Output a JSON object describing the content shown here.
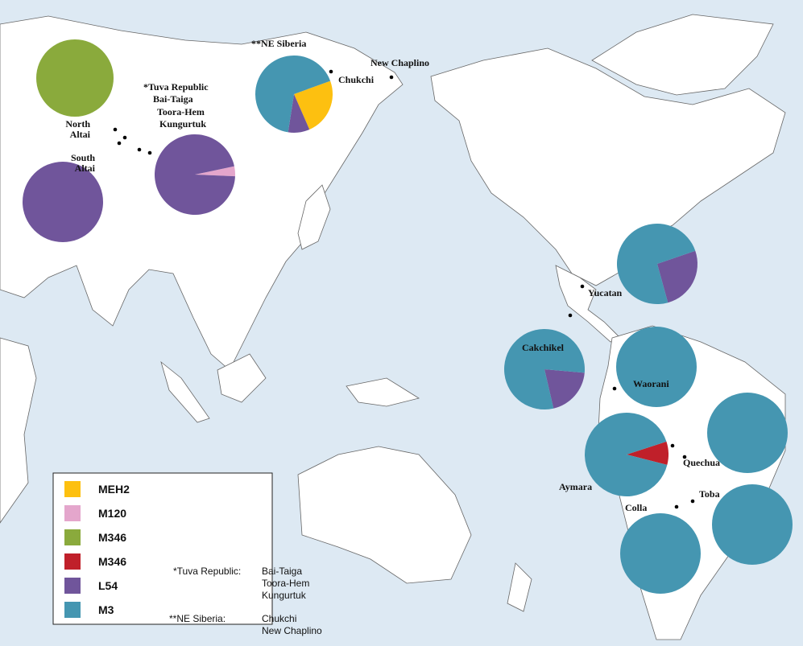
{
  "legend": {
    "items": [
      {
        "label": "MEH2",
        "color": "#fdc010"
      },
      {
        "label": "M120",
        "color": "#e4a6cc"
      },
      {
        "label": "M346",
        "color": "#8aaa3c"
      },
      {
        "label": "M346",
        "color": "#c0202a"
      },
      {
        "label": "L54",
        "color": "#70559b"
      },
      {
        "label": "M3",
        "color": "#4596b1"
      }
    ]
  },
  "map_labels": [
    {
      "lines": [
        "**NE Siberia"
      ]
    },
    {
      "lines": [
        "Chukchi"
      ]
    },
    {
      "lines": [
        "New Chaplino"
      ]
    },
    {
      "lines": [
        "*Tuva Republic"
      ]
    },
    {
      "lines": [
        "Bai-Taiga"
      ]
    },
    {
      "lines": [
        "Toora-Hem"
      ]
    },
    {
      "lines": [
        "Kungurtuk"
      ]
    },
    {
      "lines": [
        "North",
        "Altai"
      ]
    },
    {
      "lines": [
        "South",
        "Altai"
      ]
    },
    {
      "lines": [
        "Yucatan"
      ]
    },
    {
      "lines": [
        "Cakchikel"
      ]
    },
    {
      "lines": [
        "Waorani"
      ]
    },
    {
      "lines": [
        "Aymara"
      ]
    },
    {
      "lines": [
        "Quechua"
      ]
    },
    {
      "lines": [
        "Toba"
      ]
    },
    {
      "lines": [
        "Colla"
      ]
    }
  ],
  "pies": [
    {
      "values": [
        100
      ],
      "colors": [
        "#8aaa3c"
      ]
    },
    {
      "values": [
        24,
        9,
        67
      ],
      "colors": [
        "#fdc010",
        "#70559b",
        "#4596b1"
      ]
    },
    {
      "values": [
        100
      ],
      "colors": [
        "#70559b"
      ]
    },
    {
      "values": [
        4,
        96
      ],
      "colors": [
        "#e4a6cc",
        "#70559b"
      ]
    },
    {
      "values": [
        26,
        74
      ],
      "colors": [
        "#70559b",
        "#4596b1"
      ]
    },
    {
      "values": [
        20,
        80
      ],
      "colors": [
        "#70559b",
        "#4596b1"
      ]
    },
    {
      "values": [
        100
      ],
      "colors": [
        "#4596b1"
      ]
    },
    {
      "values": [
        9,
        91
      ],
      "colors": [
        "#c0202a",
        "#4596b1"
      ]
    },
    {
      "values": [
        100
      ],
      "colors": [
        "#4596b1"
      ]
    },
    {
      "values": [
        100
      ],
      "colors": [
        "#4596b1"
      ]
    },
    {
      "values": [
        100
      ],
      "colors": [
        "#4596b1"
      ]
    }
  ],
  "footnotes": [
    {
      "key": "*Tuva Republic:",
      "lines": [
        "Bai-Taiga",
        "Toora-Hem",
        "Kungurtuk"
      ]
    },
    {
      "key": "**NE Siberia:",
      "lines": [
        "Chukchi",
        "New Chaplino"
      ]
    }
  ]
}
